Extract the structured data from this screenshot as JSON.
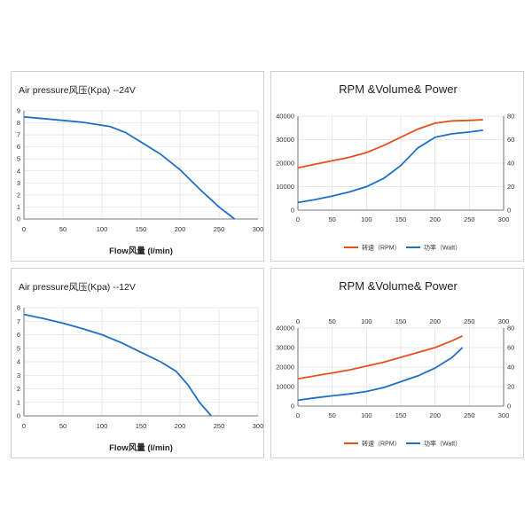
{
  "colors": {
    "blue": "#1f6fc5",
    "orange": "#e5501d",
    "grid": "#e0e0e0"
  },
  "chart_data": [
    {
      "type": "line",
      "title": "Air pressure风压(Kpa)  --24V",
      "xlabel": "Flow风量  (l/min)",
      "xlim": [
        0,
        300
      ],
      "xticks": [
        0,
        50,
        100,
        150,
        200,
        250,
        300
      ],
      "ylim": [
        0,
        9
      ],
      "yticks": [
        0,
        1,
        2,
        3,
        4,
        5,
        6,
        7,
        8,
        9
      ],
      "series": [
        {
          "name": "Air pressure",
          "color": "#1f6fc5",
          "x": [
            0,
            25,
            50,
            75,
            95,
            110,
            130,
            150,
            175,
            200,
            225,
            250,
            270
          ],
          "y": [
            8.5,
            8.35,
            8.2,
            8.05,
            7.85,
            7.7,
            7.2,
            6.4,
            5.4,
            4.1,
            2.5,
            1.0,
            0
          ]
        }
      ]
    },
    {
      "type": "line",
      "title": "RPM &Volume& Power",
      "x_axis_position": "bottom",
      "xlim": [
        0,
        300
      ],
      "xticks": [
        0,
        50,
        100,
        150,
        200,
        250,
        300
      ],
      "ylim": [
        0,
        40000
      ],
      "yticks": [
        0,
        10000,
        20000,
        30000,
        40000
      ],
      "y2lim": [
        0,
        80
      ],
      "y2ticks": [
        0,
        20,
        40,
        60,
        80
      ],
      "legend": [
        "转速（RPM）",
        "功率（Watt）"
      ],
      "series": [
        {
          "name": "转速（RPM）",
          "color": "#e5501d",
          "axis": "left",
          "x": [
            0,
            25,
            50,
            75,
            100,
            125,
            150,
            175,
            200,
            225,
            250,
            270
          ],
          "y": [
            18000,
            19500,
            21000,
            22500,
            24500,
            27500,
            31000,
            34500,
            37000,
            38000,
            38200,
            38500
          ]
        },
        {
          "name": "功率（Watt）",
          "color": "#1f6fc5",
          "axis": "right",
          "x": [
            0,
            25,
            50,
            75,
            100,
            125,
            150,
            175,
            200,
            225,
            250,
            270
          ],
          "y": [
            6.5,
            9,
            12,
            15.5,
            20,
            27,
            38,
            53,
            62,
            65,
            66.5,
            68
          ]
        }
      ]
    },
    {
      "type": "line",
      "title": "Air pressure风压(Kpa)  --12V",
      "xlabel": "Flow风量  (l/min)",
      "xlim": [
        0,
        300
      ],
      "xticks": [
        0,
        50,
        100,
        150,
        200,
        250,
        300
      ],
      "ylim": [
        0,
        8
      ],
      "yticks": [
        0,
        1,
        2,
        3,
        4,
        5,
        6,
        7,
        8
      ],
      "series": [
        {
          "name": "Air pressure",
          "color": "#1f6fc5",
          "x": [
            0,
            25,
            50,
            75,
            100,
            125,
            150,
            175,
            195,
            210,
            225,
            240
          ],
          "y": [
            7.5,
            7.2,
            6.85,
            6.45,
            6.0,
            5.4,
            4.7,
            4.0,
            3.3,
            2.3,
            1.0,
            0
          ]
        }
      ]
    },
    {
      "type": "line",
      "title": "RPM &Volume& Power",
      "x_axis_position": "top",
      "xlim": [
        0,
        300
      ],
      "xticks": [
        0,
        50,
        100,
        150,
        200,
        250,
        300
      ],
      "ylim": [
        0,
        40000
      ],
      "yticks": [
        0,
        10000,
        20000,
        30000,
        40000
      ],
      "y2lim": [
        0,
        80
      ],
      "y2ticks": [
        0,
        20,
        40,
        60,
        80
      ],
      "legend": [
        "转速（RPM）",
        "功率（Watt）"
      ],
      "series": [
        {
          "name": "转速（RPM）",
          "color": "#e5501d",
          "axis": "left",
          "x": [
            0,
            25,
            50,
            75,
            100,
            125,
            150,
            175,
            200,
            225,
            240
          ],
          "y": [
            14000,
            15500,
            17000,
            18500,
            20500,
            22500,
            25000,
            27500,
            30000,
            33500,
            36000
          ]
        },
        {
          "name": "功率（Watt）",
          "color": "#1f6fc5",
          "axis": "right",
          "x": [
            0,
            25,
            50,
            75,
            100,
            125,
            150,
            175,
            200,
            225,
            240
          ],
          "y": [
            6,
            8.5,
            10.5,
            12.5,
            15,
            19,
            25,
            31,
            39,
            50,
            60
          ]
        }
      ]
    }
  ]
}
